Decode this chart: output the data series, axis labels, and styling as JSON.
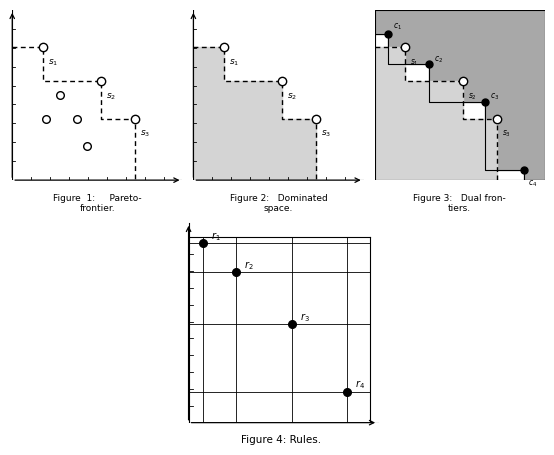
{
  "fig1": {
    "frontier_points": [
      [
        0.18,
        0.78
      ],
      [
        0.52,
        0.58
      ],
      [
        0.72,
        0.36
      ]
    ],
    "other_points": [
      [
        0.28,
        0.5
      ],
      [
        0.2,
        0.36
      ],
      [
        0.38,
        0.36
      ],
      [
        0.44,
        0.2
      ]
    ],
    "title": "Figure  1:     Pareto-\nfrontier."
  },
  "fig2": {
    "frontier_points": [
      [
        0.18,
        0.78
      ],
      [
        0.52,
        0.58
      ],
      [
        0.72,
        0.36
      ]
    ],
    "title": "Figure 2:   Dominated\nspace."
  },
  "fig3": {
    "s_points": [
      [
        0.18,
        0.78
      ],
      [
        0.52,
        0.58
      ],
      [
        0.72,
        0.36
      ]
    ],
    "c_points": [
      [
        0.08,
        0.86
      ],
      [
        0.32,
        0.68
      ],
      [
        0.65,
        0.46
      ],
      [
        0.88,
        0.06
      ]
    ],
    "title": "Figure 3:   Dual fron-\ntiers."
  },
  "fig4": {
    "points": [
      [
        0.12,
        0.87
      ],
      [
        0.28,
        0.73
      ],
      [
        0.55,
        0.48
      ],
      [
        0.82,
        0.15
      ]
    ],
    "labels": [
      "r_1",
      "r_2",
      "r_3",
      "r_4"
    ],
    "title": "Figure 4: Rules."
  },
  "bg": "#ffffff",
  "light_gray": "#d4d4d4",
  "dark_gray": "#a8a8a8",
  "mid_gray": "#c0c0c0"
}
